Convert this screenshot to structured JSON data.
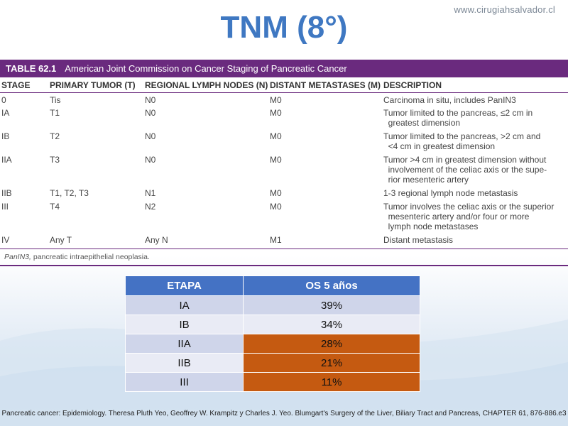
{
  "site_url": "www.cirugiahsalvador.cl",
  "title": "TNM (8°)",
  "tnm_table": {
    "table_number": "TABLE 62.1",
    "caption": "American Joint Commission on Cancer Staging of Pancreatic Cancer",
    "columns": [
      "STAGE",
      "PRIMARY TUMOR (T)",
      "REGIONAL LYMPH NODES (N)",
      "DISTANT METASTASES (M)",
      "DESCRIPTION"
    ],
    "rows": [
      {
        "stage": "0",
        "t": "Tis",
        "n": "N0",
        "m": "M0",
        "desc": [
          "Carcinoma in situ, includes PanIN3"
        ]
      },
      {
        "stage": "IA",
        "t": "T1",
        "n": "N0",
        "m": "M0",
        "desc": [
          "Tumor limited to the pancreas, ≤2 cm in",
          "  greatest dimension"
        ]
      },
      {
        "stage": "IB",
        "t": "T2",
        "n": "N0",
        "m": "M0",
        "desc": [
          "Tumor limited to the pancreas, >2 cm and",
          "  <4 cm in greatest dimension"
        ]
      },
      {
        "stage": "IIA",
        "t": "T3",
        "n": "N0",
        "m": "M0",
        "desc": [
          "Tumor >4 cm in greatest dimension without",
          "  involvement of the celiac axis or the supe-",
          "  rior mesenteric artery"
        ]
      },
      {
        "stage": "IIB",
        "t": "T1, T2, T3",
        "n": "N1",
        "m": "M0",
        "desc": [
          "1-3 regional lymph node metastasis"
        ]
      },
      {
        "stage": "III",
        "t": "T4",
        "n": "N2",
        "m": "M0",
        "desc": [
          "Tumor involves the celiac axis or the superior",
          "  mesenteric artery and/or four or more",
          "  lymph node metastases"
        ]
      },
      {
        "stage": "IV",
        "t": "Any T",
        "n": "Any N",
        "m": "M1",
        "desc": [
          "Distant metastasis"
        ]
      }
    ],
    "footnote_term": "PanIN3,",
    "footnote_text": " pancreatic intraepithelial neoplasia."
  },
  "survival_table": {
    "headers": [
      "ETAPA",
      "OS 5 años"
    ],
    "rows": [
      {
        "stage": "IA",
        "os": "39%",
        "highlight": false
      },
      {
        "stage": "IB",
        "os": "34%",
        "highlight": false
      },
      {
        "stage": "IIA",
        "os": "28%",
        "highlight": true
      },
      {
        "stage": "IIB",
        "os": "21%",
        "highlight": true
      },
      {
        "stage": "III",
        "os": "11%",
        "highlight": true
      }
    ],
    "highlight_color": "#c55a11",
    "header_color": "#4472c4"
  },
  "citation": "Pancreatic cancer: Epidemiology. Theresa Pluth Yeo, Geoffrey W. Krampitz y Charles J. Yeo. Blumgart's Surgery of the Liver, Biliary Tract and Pancreas, CHAPTER 61, 876-886.e3"
}
